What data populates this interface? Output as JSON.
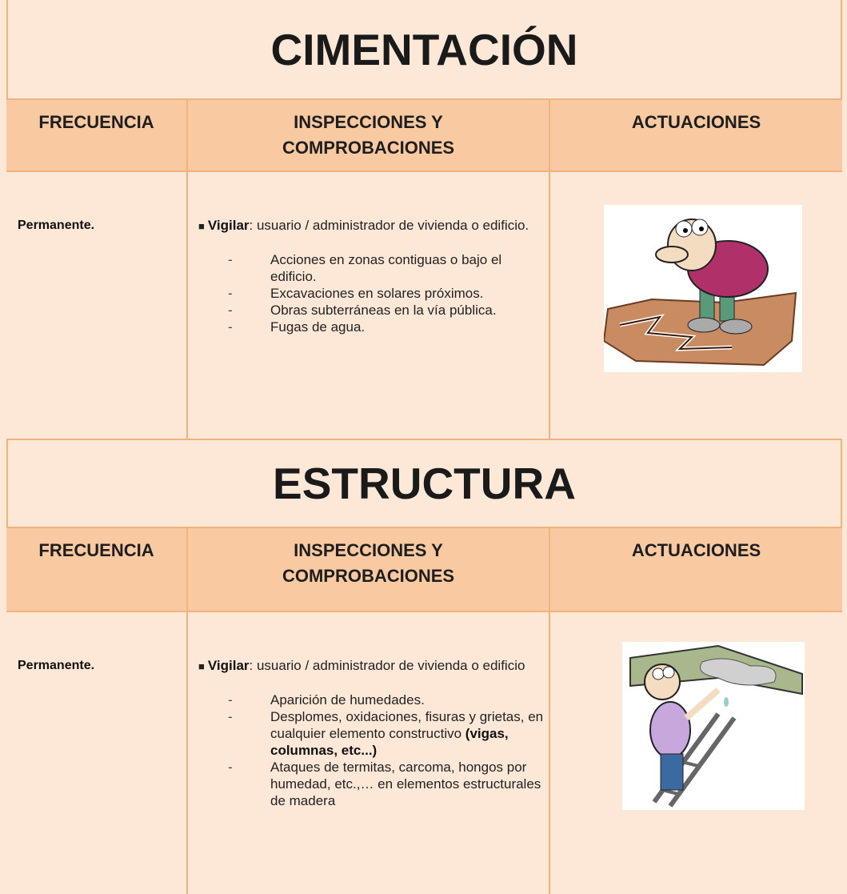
{
  "sections": [
    {
      "title": "CIMENTACIÓN",
      "headers": [
        "FRECUENCIA",
        "INSPECCIONES Y COMPROBACIONES",
        "ACTUACIONES"
      ],
      "frequency": "Permanente.",
      "bullet": "■",
      "intro_bold": "Vigilar",
      "intro_text": ": usuario / administrador de vivienda o edificio.",
      "marker": "-",
      "items": [
        {
          "text": "Acciones en zonas contiguas o bajo el edificio."
        },
        {
          "text": "Excavaciones en solares próximos."
        },
        {
          "text": "Obras subterráneas en la vía pública."
        },
        {
          "text": "Fugas de agua."
        }
      ]
    },
    {
      "title": "ESTRUCTURA",
      "headers": [
        "FRECUENCIA",
        "INSPECCIONES Y COMPROBACIONES",
        "ACTUACIONES"
      ],
      "frequency": "Permanente.",
      "bullet": "■",
      "intro_bold": "Vigilar",
      "intro_text": ": usuario / administrador de vivienda o edificio",
      "marker": "-",
      "items": [
        {
          "text": "Aparición de humedades."
        },
        {
          "text": "Desplomes, oxidaciones, fisuras y grietas, en cualquier elemento constructivo ",
          "bold": "(vigas, columnas, etc...)"
        },
        {
          "text": "Ataques de termitas, carcoma, hongos por humedad, etc.,… en elementos estructurales de madera"
        }
      ]
    }
  ]
}
